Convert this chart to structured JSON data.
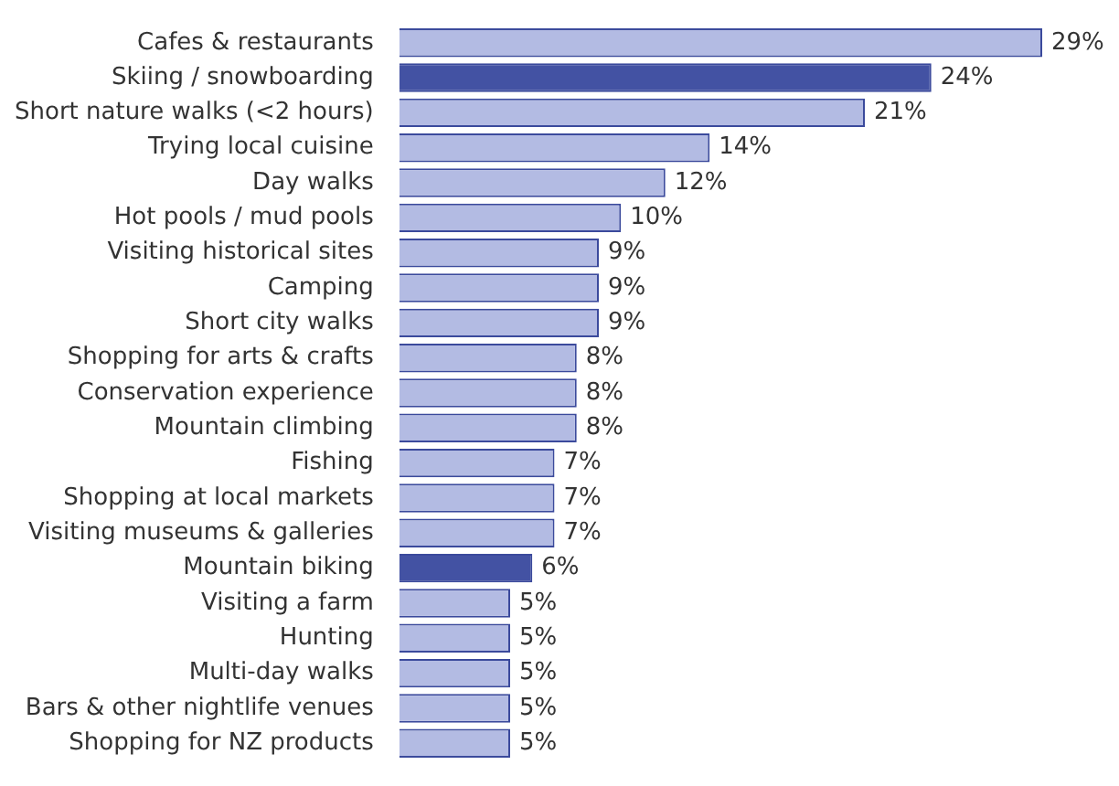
{
  "chart_data": {
    "type": "bar",
    "orientation": "horizontal",
    "categories": [
      "Cafes & restaurants",
      "Skiing / snowboarding",
      "Short nature walks (<2 hours)",
      "Trying local cuisine",
      "Day walks",
      "Hot pools / mud pools",
      "Visiting historical sites",
      "Camping",
      "Short city walks",
      "Shopping for arts & crafts",
      "Conservation experience",
      "Mountain climbing",
      "Fishing",
      "Shopping at local markets",
      "Visiting museums & galleries",
      "Mountain biking",
      "Visiting a farm",
      "Hunting",
      "Multi-day walks",
      "Bars & other nightlife venues",
      "Shopping for NZ products"
    ],
    "values": [
      29,
      24,
      21,
      14,
      12,
      10,
      9,
      9,
      9,
      8,
      8,
      8,
      7,
      7,
      7,
      6,
      5,
      5,
      5,
      5,
      5
    ],
    "colors": [
      "#b3bbe3",
      "#4352a3",
      "#b3bbe3",
      "#b3bbe3",
      "#b3bbe3",
      "#b3bbe3",
      "#b3bbe3",
      "#b3bbe3",
      "#b3bbe3",
      "#b3bbe3",
      "#b3bbe3",
      "#b3bbe3",
      "#b3bbe3",
      "#b3bbe3",
      "#b3bbe3",
      "#4352a3",
      "#b3bbe3",
      "#b3bbe3",
      "#b3bbe3",
      "#b3bbe3",
      "#b3bbe3"
    ],
    "value_labels": [
      "29%",
      "24%",
      "21%",
      "14%",
      "12%",
      "10%",
      "9%",
      "9%",
      "9%",
      "8%",
      "8%",
      "8%",
      "7%",
      "7%",
      "7%",
      "6%",
      "5%",
      "5%",
      "5%",
      "5%",
      "5%"
    ],
    "xlim": [
      0,
      29
    ],
    "legend": false
  }
}
